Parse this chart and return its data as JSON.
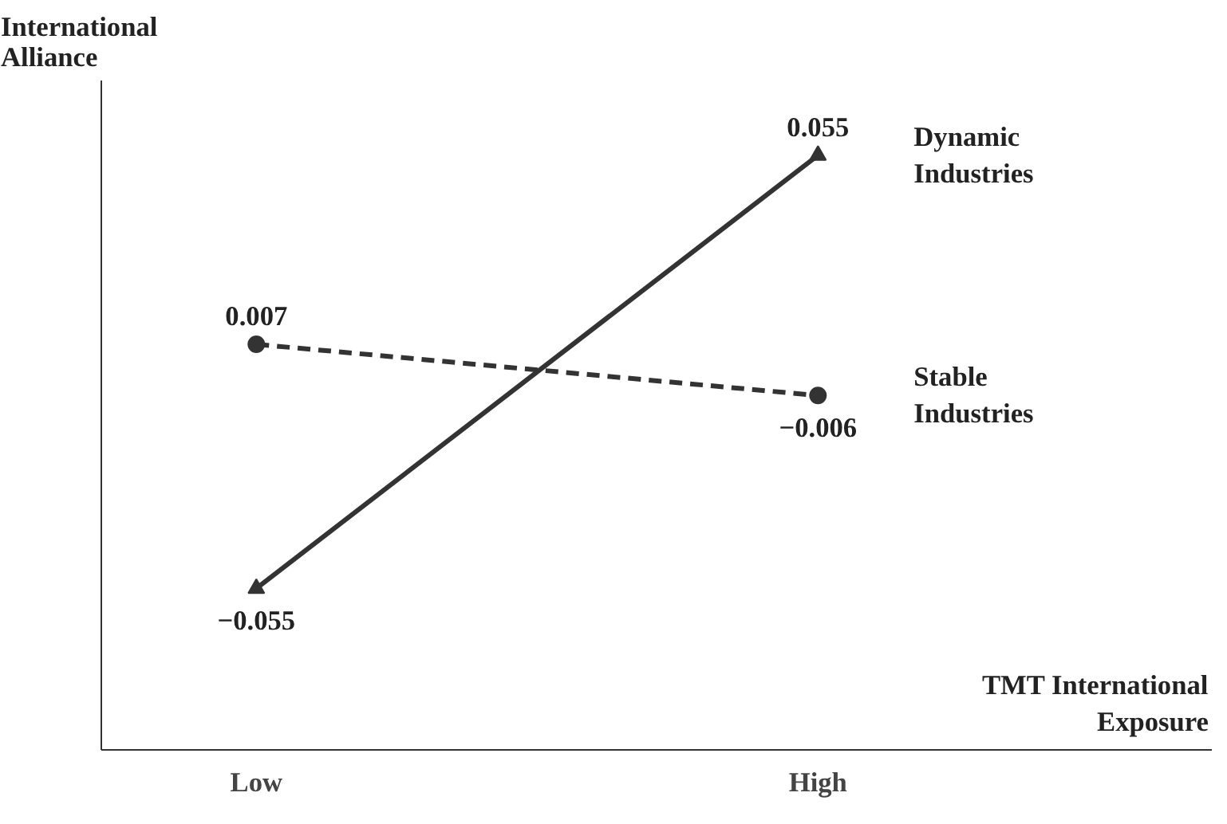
{
  "chart_data": {
    "type": "line",
    "xlabel": "TMT International Exposure",
    "ylabel": "International Alliance",
    "categories": [
      "Low",
      "High"
    ],
    "series": [
      {
        "name": "Dynamic Industries",
        "color": "#333333",
        "values": [
          -0.055,
          0.055
        ],
        "marker": "triangle",
        "line_style": "solid"
      },
      {
        "name": "Stable Industries",
        "color": "#333333",
        "values": [
          0.007,
          -0.006
        ],
        "marker": "circle",
        "line_style": "dashed"
      }
    ],
    "ylim": [
      -0.096,
      0.074
    ],
    "tick_labels": "x",
    "data_labels": true,
    "grid": false
  }
}
